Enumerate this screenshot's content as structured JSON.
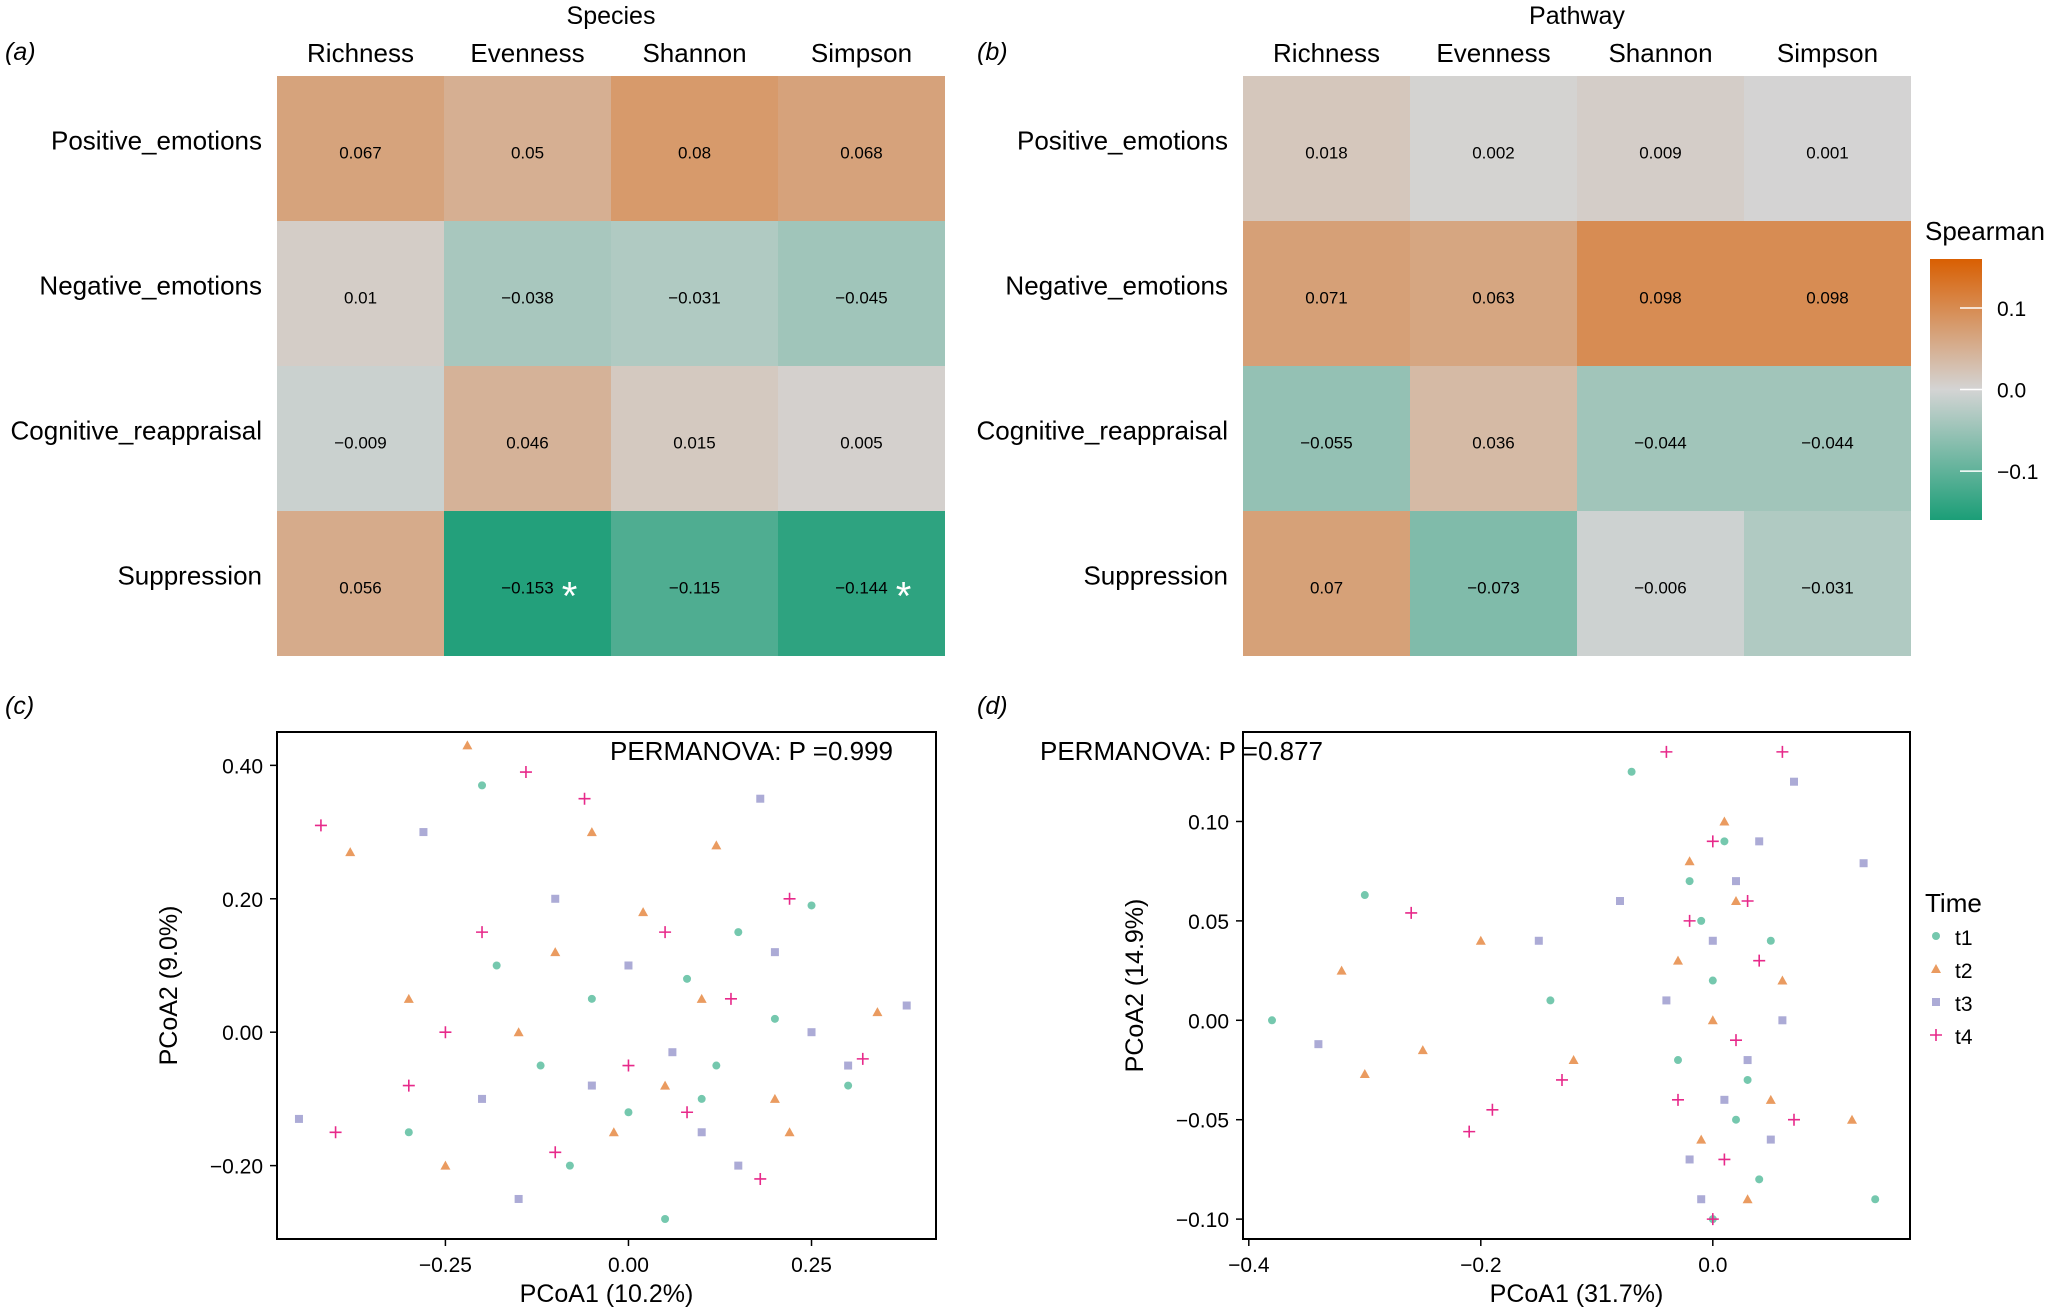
{
  "colors": {
    "low": "#1b9e77",
    "mid": "#d4d4d4",
    "high": "#d95f02",
    "t1": "#66c2a5",
    "t2": "#e8904f",
    "t3": "#a3a2d2",
    "t4": "#e7298a"
  },
  "chart_data": [
    {
      "type": "heatmap",
      "panel": "(a)",
      "title": "Species",
      "columns": [
        "Richness",
        "Evenness",
        "Shannon",
        "Simpson"
      ],
      "rows": [
        "Positive_emotions",
        "Negative_emotions",
        "Cognitive_reappraisal",
        "Suppression"
      ],
      "values": [
        [
          0.067,
          0.05,
          0.08,
          0.068
        ],
        [
          0.01,
          -0.038,
          -0.031,
          -0.045
        ],
        [
          -0.009,
          0.046,
          0.015,
          0.005
        ],
        [
          0.056,
          -0.153,
          -0.115,
          -0.144
        ]
      ],
      "labels": [
        [
          "0.067",
          "0.05",
          "0.08",
          "0.068"
        ],
        [
          "0.01",
          "−0.038",
          "−0.031",
          "−0.045"
        ],
        [
          "−0.009",
          "0.046",
          "0.015",
          "0.005"
        ],
        [
          "0.056",
          "−0.153",
          "−0.115",
          "−0.144"
        ]
      ],
      "significant": [
        [
          false,
          false,
          false,
          false
        ],
        [
          false,
          false,
          false,
          false
        ],
        [
          false,
          false,
          false,
          false
        ],
        [
          false,
          true,
          false,
          true
        ]
      ],
      "star": "*"
    },
    {
      "type": "heatmap",
      "panel": "(b)",
      "title": "Pathway",
      "columns": [
        "Richness",
        "Evenness",
        "Shannon",
        "Simpson"
      ],
      "rows": [
        "Positive_emotions",
        "Negative_emotions",
        "Cognitive_reappraisal",
        "Suppression"
      ],
      "values": [
        [
          0.018,
          0.002,
          0.009,
          0.001
        ],
        [
          0.071,
          0.063,
          0.098,
          0.098
        ],
        [
          -0.055,
          0.036,
          -0.044,
          -0.044
        ],
        [
          0.07,
          -0.073,
          -0.006,
          -0.031
        ]
      ],
      "labels": [
        [
          "0.018",
          "0.002",
          "0.009",
          "0.001"
        ],
        [
          "0.071",
          "0.063",
          "0.098",
          "0.098"
        ],
        [
          "−0.055",
          "0.036",
          "−0.044",
          "−0.044"
        ],
        [
          "0.07",
          "−0.073",
          "−0.006",
          "−0.031"
        ]
      ],
      "significant": [
        [
          false,
          false,
          false,
          false
        ],
        [
          false,
          false,
          false,
          false
        ],
        [
          false,
          false,
          false,
          false
        ],
        [
          false,
          false,
          false,
          false
        ]
      ],
      "star": "*",
      "legend": {
        "title": "Spearman",
        "ticks": [
          0.1,
          0.0,
          -0.1
        ],
        "tick_labels": [
          "0.1",
          "0.0",
          "−0.1"
        ],
        "range": [
          -0.16,
          0.16
        ]
      }
    },
    {
      "type": "scatter",
      "panel": "(c)",
      "xlabel": "PCoA1 (10.2%)",
      "ylabel": "PCoA2 (9.0%)",
      "annotation": "PERMANOVA: P =0.999",
      "xlim": [
        -0.48,
        0.42
      ],
      "ylim": [
        -0.31,
        0.45
      ],
      "xticks": [
        -0.25,
        0,
        0.25
      ],
      "xtick_labels": [
        "−0.25",
        "0.00",
        "0.25"
      ],
      "yticks": [
        0.4,
        0.2,
        0,
        -0.2
      ],
      "ytick_labels": [
        "0.40",
        "0.20",
        "0.00",
        "−0.20"
      ],
      "series": [
        {
          "name": "t1",
          "points": [
            [
              -0.2,
              0.37
            ],
            [
              -0.05,
              0.05
            ],
            [
              0.1,
              -0.1
            ],
            [
              0.2,
              0.02
            ],
            [
              -0.3,
              -0.15
            ],
            [
              0.15,
              0.15
            ],
            [
              0.05,
              -0.28
            ],
            [
              -0.12,
              -0.05
            ],
            [
              0.25,
              0.19
            ],
            [
              0,
              -0.12
            ],
            [
              -0.18,
              0.1
            ],
            [
              0.3,
              -0.08
            ],
            [
              0.08,
              0.08
            ],
            [
              -0.08,
              -0.2
            ],
            [
              0.12,
              -0.05
            ]
          ]
        },
        {
          "name": "t2",
          "points": [
            [
              -0.22,
              0.43
            ],
            [
              -0.38,
              0.27
            ],
            [
              0.05,
              -0.08
            ],
            [
              -0.1,
              0.12
            ],
            [
              0.34,
              0.03
            ],
            [
              -0.25,
              -0.2
            ],
            [
              0.12,
              0.28
            ],
            [
              -0.02,
              -0.15
            ],
            [
              0.2,
              -0.1
            ],
            [
              -0.15,
              0
            ],
            [
              0.1,
              0.05
            ],
            [
              -0.3,
              0.05
            ],
            [
              0.22,
              -0.15
            ],
            [
              -0.05,
              0.3
            ],
            [
              0.02,
              0.18
            ]
          ]
        },
        {
          "name": "t3",
          "points": [
            [
              0.18,
              0.35
            ],
            [
              -0.45,
              -0.13
            ],
            [
              0.38,
              0.04
            ],
            [
              0.06,
              -0.03
            ],
            [
              -0.2,
              -0.1
            ],
            [
              0.15,
              -0.2
            ],
            [
              -0.1,
              0.2
            ],
            [
              0.25,
              0
            ],
            [
              -0.28,
              0.3
            ],
            [
              0,
              0.1
            ],
            [
              0.1,
              -0.15
            ],
            [
              -0.15,
              -0.25
            ],
            [
              0.3,
              -0.05
            ],
            [
              -0.05,
              -0.08
            ],
            [
              0.2,
              0.12
            ]
          ]
        },
        {
          "name": "t4",
          "points": [
            [
              -0.42,
              0.31
            ],
            [
              -0.14,
              0.39
            ],
            [
              -0.4,
              -0.15
            ],
            [
              0.08,
              -0.12
            ],
            [
              -0.3,
              -0.08
            ],
            [
              0.32,
              -0.04
            ],
            [
              -0.06,
              0.35
            ],
            [
              0.14,
              0.05
            ],
            [
              0,
              -0.05
            ],
            [
              -0.2,
              0.15
            ],
            [
              0.22,
              0.2
            ],
            [
              -0.1,
              -0.18
            ],
            [
              0.05,
              0.15
            ],
            [
              0.18,
              -0.22
            ],
            [
              -0.25,
              0
            ]
          ]
        }
      ]
    },
    {
      "type": "scatter",
      "panel": "(d)",
      "xlabel": "PCoA1 (31.7%)",
      "ylabel": "PCoA2 (14.9%)",
      "annotation": "PERMANOVA: P =0.877",
      "xlim": [
        -0.405,
        0.17
      ],
      "ylim": [
        -0.11,
        0.145
      ],
      "xticks": [
        -0.4,
        -0.2,
        0
      ],
      "xtick_labels": [
        "−0.4",
        "−0.2",
        "0.0"
      ],
      "yticks": [
        0.1,
        0.05,
        0,
        -0.05,
        -0.1
      ],
      "ytick_labels": [
        "0.10",
        "0.05",
        "0.00",
        "−0.05",
        "−0.10"
      ],
      "legend": {
        "title": "Time",
        "entries": [
          "t1",
          "t2",
          "t3",
          "t4"
        ]
      },
      "series": [
        {
          "name": "t1",
          "points": [
            [
              -0.38,
              0
            ],
            [
              -0.3,
              0.063
            ],
            [
              -0.07,
              0.125
            ],
            [
              0,
              0.02
            ],
            [
              0.02,
              -0.05
            ],
            [
              -0.02,
              0.07
            ],
            [
              0.04,
              -0.08
            ],
            [
              0.14,
              -0.09
            ],
            [
              0.01,
              0.09
            ],
            [
              -0.03,
              -0.02
            ],
            [
              0.05,
              0.04
            ],
            [
              -0.14,
              0.01
            ],
            [
              0.03,
              -0.03
            ],
            [
              -0.01,
              0.05
            ],
            [
              0,
              -0.1
            ]
          ]
        },
        {
          "name": "t2",
          "points": [
            [
              -0.3,
              -0.027
            ],
            [
              -0.32,
              0.025
            ],
            [
              -0.25,
              -0.015
            ],
            [
              0,
              0
            ],
            [
              0.02,
              0.06
            ],
            [
              -0.01,
              -0.06
            ],
            [
              0.12,
              -0.05
            ],
            [
              0.06,
              0.02
            ],
            [
              -0.2,
              0.04
            ],
            [
              -0.03,
              0.03
            ],
            [
              0.03,
              -0.09
            ],
            [
              0.01,
              0.1
            ],
            [
              -0.12,
              -0.02
            ],
            [
              0.05,
              -0.04
            ],
            [
              -0.02,
              0.08
            ]
          ]
        },
        {
          "name": "t3",
          "points": [
            [
              -0.34,
              -0.012
            ],
            [
              0.07,
              0.12
            ],
            [
              0.13,
              0.079
            ],
            [
              0,
              0.04
            ],
            [
              0.03,
              -0.02
            ],
            [
              -0.02,
              -0.07
            ],
            [
              -0.15,
              0.04
            ],
            [
              0.02,
              0.07
            ],
            [
              0.05,
              -0.06
            ],
            [
              -0.04,
              0.01
            ],
            [
              0.01,
              -0.04
            ],
            [
              -0.08,
              0.06
            ],
            [
              0.04,
              0.09
            ],
            [
              -0.01,
              -0.09
            ],
            [
              0.06,
              0
            ]
          ]
        },
        {
          "name": "t4",
          "points": [
            [
              -0.04,
              0.135
            ],
            [
              0.06,
              0.135
            ],
            [
              -0.26,
              0.054
            ],
            [
              -0.21,
              -0.056
            ],
            [
              0,
              0.09
            ],
            [
              0.02,
              -0.01
            ],
            [
              -0.02,
              0.05
            ],
            [
              0.04,
              0.03
            ],
            [
              -0.13,
              -0.03
            ],
            [
              0.01,
              -0.07
            ],
            [
              -0.03,
              -0.04
            ],
            [
              0.07,
              -0.05
            ],
            [
              -0.19,
              -0.045
            ],
            [
              0.03,
              0.06
            ],
            [
              0,
              -0.1
            ]
          ]
        }
      ]
    }
  ]
}
